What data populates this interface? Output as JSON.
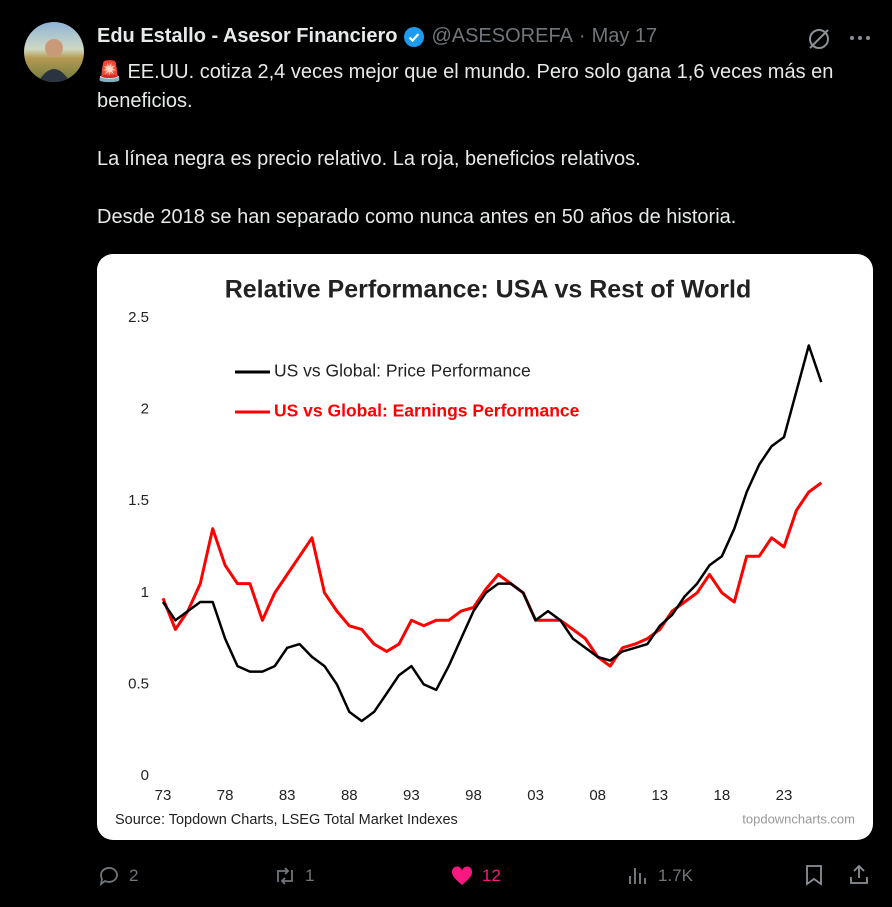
{
  "tweet": {
    "author_name": "Edu Estallo - Asesor Financiero",
    "handle": "@ASESOREFA",
    "separator": "·",
    "date": "May 17",
    "paragraphs": [
      "🚨 EE.UU. cotiza 2,4 veces mejor que el mundo. Pero solo gana 1,6 veces más en beneficios.",
      "La línea negra es precio relativo. La roja, beneficios relativos.",
      "Desde 2018 se han separado como nunca antes en 50 años de historia."
    ],
    "stats": {
      "replies": "2",
      "reposts": "1",
      "likes": "12",
      "views": "1.7K"
    }
  },
  "chart_data": {
    "type": "line",
    "title": "Relative Performance: USA vs Rest of World",
    "source": "Source: Topdown Charts, LSEG Total Market Indexes",
    "watermark": "topdowncharts.com",
    "legend": "upper left",
    "grid": false,
    "x": [
      1973,
      1974,
      1975,
      1976,
      1977,
      1978,
      1979,
      1980,
      1981,
      1982,
      1983,
      1984,
      1985,
      1986,
      1987,
      1988,
      1989,
      1990,
      1991,
      1992,
      1993,
      1994,
      1995,
      1996,
      1997,
      1998,
      1999,
      2000,
      2001,
      2002,
      2003,
      2004,
      2005,
      2006,
      2007,
      2008,
      2009,
      2010,
      2011,
      2012,
      2013,
      2014,
      2015,
      2016,
      2017,
      2018,
      2019,
      2020,
      2021,
      2022,
      2023,
      2024,
      2025,
      2026
    ],
    "xlim": [
      1973,
      2027
    ],
    "xticks": [
      {
        "value": 1973,
        "label": "73"
      },
      {
        "value": 1978,
        "label": "78"
      },
      {
        "value": 1983,
        "label": "83"
      },
      {
        "value": 1988,
        "label": "88"
      },
      {
        "value": 1993,
        "label": "93"
      },
      {
        "value": 1998,
        "label": "98"
      },
      {
        "value": 2003,
        "label": "03"
      },
      {
        "value": 2008,
        "label": "08"
      },
      {
        "value": 2013,
        "label": "13"
      },
      {
        "value": 2018,
        "label": "18"
      },
      {
        "value": 2023,
        "label": "23"
      }
    ],
    "ylim": [
      0,
      2.5
    ],
    "yticks": [
      0,
      0.5,
      1,
      1.5,
      2,
      2.5
    ],
    "series": [
      {
        "name": "US vs Global: Price Performance",
        "color": "#000000",
        "values": [
          0.95,
          0.85,
          0.9,
          0.95,
          0.95,
          0.75,
          0.6,
          0.57,
          0.57,
          0.6,
          0.7,
          0.72,
          0.65,
          0.6,
          0.5,
          0.35,
          0.3,
          0.35,
          0.45,
          0.55,
          0.6,
          0.5,
          0.47,
          0.6,
          0.75,
          0.9,
          1.0,
          1.05,
          1.05,
          1.0,
          0.85,
          0.9,
          0.85,
          0.75,
          0.7,
          0.65,
          0.63,
          0.68,
          0.7,
          0.72,
          0.82,
          0.88,
          0.98,
          1.05,
          1.15,
          1.2,
          1.35,
          1.55,
          1.7,
          1.8,
          1.85,
          2.1,
          2.35,
          2.15
        ]
      },
      {
        "name": "US vs Global: Earnings Performance",
        "color": "#ff0000",
        "values": [
          0.97,
          0.8,
          0.9,
          1.05,
          1.35,
          1.15,
          1.05,
          1.05,
          0.85,
          1.0,
          1.1,
          1.2,
          1.3,
          1.0,
          0.9,
          0.82,
          0.8,
          0.72,
          0.68,
          0.72,
          0.85,
          0.82,
          0.85,
          0.85,
          0.9,
          0.92,
          1.02,
          1.1,
          1.05,
          1.0,
          0.85,
          0.85,
          0.85,
          0.8,
          0.75,
          0.65,
          0.6,
          0.7,
          0.72,
          0.75,
          0.8,
          0.9,
          0.95,
          1.0,
          1.1,
          1.0,
          0.95,
          1.2,
          1.2,
          1.3,
          1.25,
          1.45,
          1.55,
          1.6
        ]
      }
    ]
  }
}
